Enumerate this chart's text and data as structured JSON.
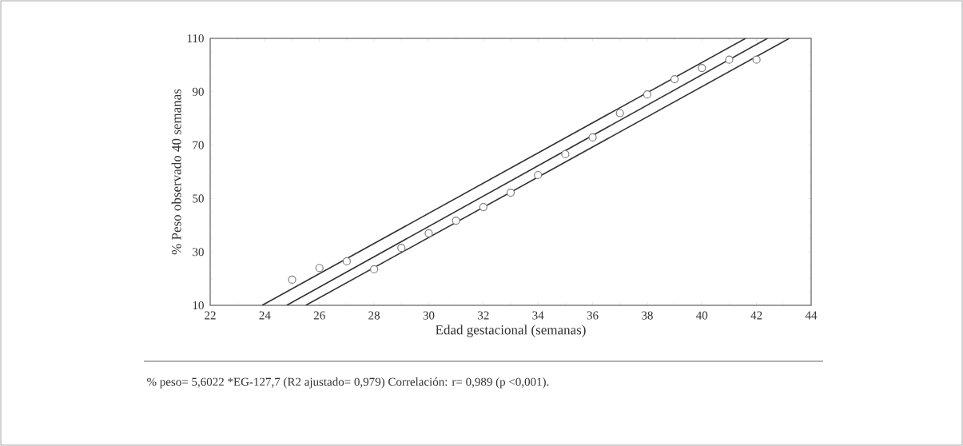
{
  "chart_data": {
    "type": "scatter",
    "xlabel": "Edad gestacional (semanas)",
    "ylabel": "% Peso observado 40 semanas",
    "xlim": [
      22,
      44
    ],
    "ylim": [
      10,
      110
    ],
    "xticks": [
      22,
      24,
      26,
      28,
      30,
      32,
      34,
      36,
      38,
      40,
      42,
      44
    ],
    "yticks": [
      10,
      30,
      50,
      70,
      90,
      110
    ],
    "grid": false,
    "annotations": [
      "% peso= 5,6022  *EG-127,7 (R2 ajustado= 0,979) Correlación: r= 0,989 (p <0,001)."
    ],
    "series": [
      {
        "marker": "circle",
        "color": "#808080",
        "x": [
          25,
          26,
          27,
          28,
          29,
          30,
          31,
          32,
          33,
          34,
          35,
          36,
          37,
          38,
          39,
          40,
          41,
          42
        ],
        "values": [
          19.6,
          24,
          26.5,
          23.5,
          31.5,
          37,
          41.7,
          46.8,
          52.2,
          58.8,
          66.6,
          72.9,
          82,
          89,
          94.7,
          98.9,
          102,
          102
        ]
      },
      {
        "type": "line",
        "marker": "none",
        "line_style": "solid",
        "color": "#333333",
        "x": [
          23.9,
          41.6
        ],
        "values": [
          10,
          110
        ]
      },
      {
        "type": "line",
        "marker": "none",
        "line_style": "solid",
        "color": "#333333",
        "x": [
          24.8,
          42.4
        ],
        "values": [
          10,
          110
        ]
      },
      {
        "type": "line",
        "marker": "none",
        "line_style": "solid",
        "color": "#333333",
        "x": [
          25.5,
          43.2
        ],
        "values": [
          10,
          110
        ]
      }
    ]
  }
}
